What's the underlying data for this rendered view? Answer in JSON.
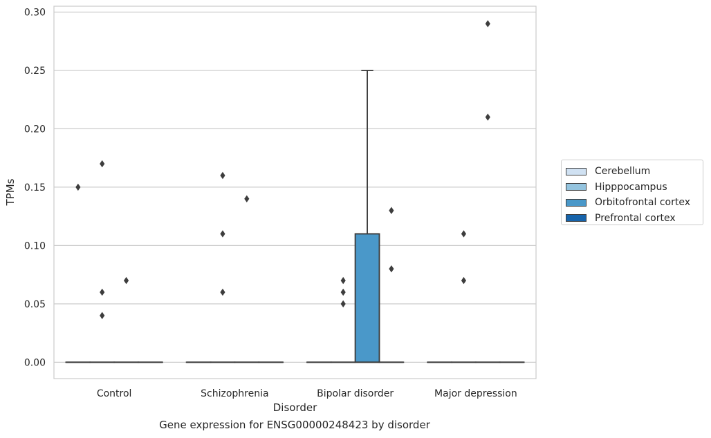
{
  "caption": "Gene expression for ENSG00000248423 by disorder",
  "chart_data": {
    "type": "box",
    "xlabel": "Disorder",
    "ylabel": "TPMs",
    "ylim": [
      -0.014,
      0.305
    ],
    "yticks": [
      "0.00",
      "0.05",
      "0.10",
      "0.15",
      "0.20",
      "0.25",
      "0.30"
    ],
    "ytick_values": [
      0,
      0.05,
      0.1,
      0.15,
      0.2,
      0.25,
      0.3
    ],
    "grid": "horizontal",
    "legend_position": "right",
    "categories": [
      "Control",
      "Schizophrenia",
      "Bipolar disorder",
      "Major depression"
    ],
    "series": [
      {
        "name": "Cerebellum",
        "color": "#d0e1f2",
        "boxes": [
          {
            "q1": 0,
            "median": 0,
            "q3": 0,
            "whisker_low": 0,
            "whisker_high": 0,
            "outliers": [
              0.15
            ]
          },
          {
            "q1": 0,
            "median": 0,
            "q3": 0,
            "whisker_low": 0,
            "whisker_high": 0,
            "outliers": []
          },
          {
            "q1": 0,
            "median": 0,
            "q3": 0,
            "whisker_low": 0,
            "whisker_high": 0,
            "outliers": []
          },
          {
            "q1": 0,
            "median": 0,
            "q3": 0,
            "whisker_low": 0,
            "whisker_high": 0,
            "outliers": []
          }
        ]
      },
      {
        "name": "Hipppocampus",
        "color": "#94c4df",
        "boxes": [
          {
            "q1": 0,
            "median": 0,
            "q3": 0,
            "whisker_low": 0,
            "whisker_high": 0,
            "outliers": [
              0.17,
              0.06,
              0.04
            ]
          },
          {
            "q1": 0,
            "median": 0,
            "q3": 0,
            "whisker_low": 0,
            "whisker_high": 0,
            "outliers": [
              0.16,
              0.11,
              0.06
            ]
          },
          {
            "q1": 0,
            "median": 0,
            "q3": 0,
            "whisker_low": 0,
            "whisker_high": 0,
            "outliers": [
              0.07,
              0.06,
              0.05
            ]
          },
          {
            "q1": 0,
            "median": 0,
            "q3": 0,
            "whisker_low": 0,
            "whisker_high": 0,
            "outliers": [
              0.11,
              0.07
            ]
          }
        ]
      },
      {
        "name": "Orbitofrontal cortex",
        "color": "#4a98c9",
        "boxes": [
          {
            "q1": 0,
            "median": 0,
            "q3": 0,
            "whisker_low": 0,
            "whisker_high": 0,
            "outliers": [
              0.07
            ]
          },
          {
            "q1": 0,
            "median": 0,
            "q3": 0,
            "whisker_low": 0,
            "whisker_high": 0,
            "outliers": [
              0.14
            ]
          },
          {
            "q1": 0,
            "median": 0,
            "q3": 0.11,
            "whisker_low": 0,
            "whisker_high": 0.25,
            "outliers": []
          },
          {
            "q1": 0,
            "median": 0,
            "q3": 0,
            "whisker_low": 0,
            "whisker_high": 0,
            "outliers": [
              0.29,
              0.21
            ]
          }
        ]
      },
      {
        "name": "Prefrontal cortex",
        "color": "#1764ab",
        "boxes": [
          {
            "q1": 0,
            "median": 0,
            "q3": 0,
            "whisker_low": 0,
            "whisker_high": 0,
            "outliers": []
          },
          {
            "q1": 0,
            "median": 0,
            "q3": 0,
            "whisker_low": 0,
            "whisker_high": 0,
            "outliers": []
          },
          {
            "q1": 0,
            "median": 0,
            "q3": 0,
            "whisker_low": 0,
            "whisker_high": 0,
            "outliers": [
              0.13,
              0.08
            ]
          },
          {
            "q1": 0,
            "median": 0,
            "q3": 0,
            "whisker_low": 0,
            "whisker_high": 0,
            "outliers": []
          }
        ]
      }
    ]
  }
}
